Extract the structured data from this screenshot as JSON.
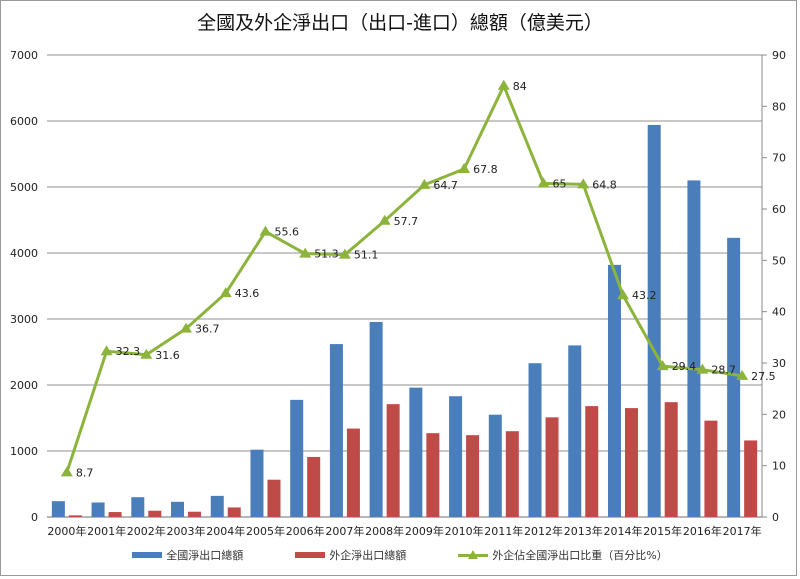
{
  "chart_data": {
    "type": "bar+line",
    "title": "全國及外企淨出口（出口-進口）總額（億美元）",
    "categories": [
      "2000年",
      "2001年",
      "2002年",
      "2003年",
      "2004年",
      "2005年",
      "2006年",
      "2007年",
      "2008年",
      "2009年",
      "2010年",
      "2011年",
      "2012年",
      "2013年",
      "2014年",
      "2015年",
      "2016年",
      "2017年"
    ],
    "y_left": {
      "min": 0,
      "max": 7000,
      "ticks": [
        "0",
        "1000",
        "2000",
        "3000",
        "4000",
        "5000",
        "6000",
        "7000"
      ],
      "tick_values": [
        0,
        1000,
        2000,
        3000,
        4000,
        5000,
        6000,
        7000
      ]
    },
    "y_right": {
      "min": 0,
      "max": 90,
      "ticks": [
        "0",
        "10",
        "20",
        "30",
        "40",
        "50",
        "60",
        "70",
        "80",
        "90"
      ],
      "tick_values": [
        0,
        10,
        20,
        30,
        40,
        50,
        60,
        70,
        80,
        90
      ]
    },
    "grid": true,
    "legend_position": "bottom",
    "series": [
      {
        "name": "全國淨出口總額",
        "type": "bar",
        "axis": "left",
        "color": "#4a7ebb",
        "values": [
          240,
          220,
          300,
          230,
          320,
          1020,
          1775,
          2620,
          2955,
          1960,
          1830,
          1550,
          2330,
          2600,
          3820,
          5940,
          5100,
          4230
        ]
      },
      {
        "name": "外企淨出口總額",
        "type": "bar",
        "axis": "left",
        "color": "#be4b48",
        "values": [
          25,
          75,
          95,
          80,
          145,
          565,
          910,
          1340,
          1710,
          1270,
          1240,
          1300,
          1510,
          1680,
          1650,
          1740,
          1460,
          1160
        ]
      },
      {
        "name": "外企佔全國淨出口比重（百分比%）",
        "type": "line",
        "axis": "right",
        "color": "#8cb43c",
        "values": [
          8.7,
          32.3,
          31.6,
          36.7,
          43.6,
          55.6,
          51.3,
          51.1,
          57.7,
          64.7,
          67.8,
          84,
          65,
          64.8,
          43.2,
          29.4,
          28.7,
          27.5
        ],
        "labels": [
          "8.7",
          "32.3",
          "31.6",
          "36.7",
          "43.6",
          "55.6",
          "51.3",
          "51.1",
          "57.7",
          "64.7",
          "67.8",
          "84",
          "65",
          "64.8",
          "43.2",
          "29.4",
          "28.7",
          "27.5"
        ]
      }
    ]
  }
}
